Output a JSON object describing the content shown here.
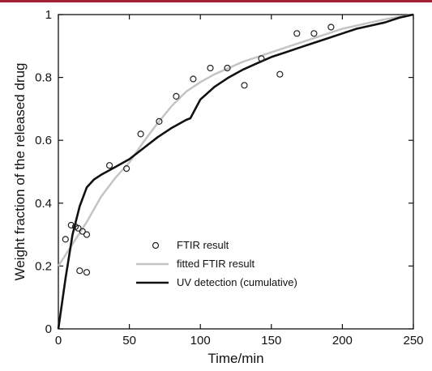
{
  "colors": {
    "top_rule": "#a32035",
    "fitted": "#c4c4c4",
    "uv": "#111111",
    "ftir": "#222222"
  },
  "chart_data": {
    "type": "scatter",
    "xlabel": "Time/min",
    "ylabel": "Weight fraction of the released drug",
    "xlim": [
      0,
      250
    ],
    "ylim": [
      0,
      1
    ],
    "xticks": [
      0,
      50,
      100,
      150,
      200,
      250
    ],
    "yticks": [
      0,
      0.2,
      0.4,
      0.6,
      0.8,
      1
    ],
    "xtick_labels": [
      "0",
      "50",
      "100",
      "150",
      "200",
      "250"
    ],
    "ytick_labels": [
      "0",
      "0.2",
      "0.4",
      "0.6",
      "0.8",
      "1"
    ],
    "legend_position": "lower-center",
    "series": [
      {
        "name": "FTIR result",
        "kind": "markers",
        "x": [
          5,
          9,
          12,
          14,
          17,
          20,
          15,
          20,
          36,
          48,
          58,
          71,
          83,
          95,
          107,
          119,
          131,
          143,
          156,
          168,
          180,
          192
        ],
        "y": [
          0.285,
          0.33,
          0.325,
          0.32,
          0.31,
          0.3,
          0.185,
          0.18,
          0.52,
          0.51,
          0.62,
          0.66,
          0.74,
          0.795,
          0.83,
          0.83,
          0.775,
          0.86,
          0.81,
          0.94,
          0.94,
          0.96
        ]
      },
      {
        "name": "fitted FTIR result",
        "kind": "line",
        "x": [
          0,
          10,
          20,
          30,
          40,
          50,
          60,
          70,
          80,
          90,
          100,
          110,
          120,
          130,
          140,
          150,
          160,
          170,
          180,
          190,
          200,
          210,
          220,
          230,
          240,
          250
        ],
        "y": [
          0.2,
          0.27,
          0.34,
          0.42,
          0.48,
          0.53,
          0.595,
          0.655,
          0.71,
          0.755,
          0.785,
          0.81,
          0.83,
          0.85,
          0.865,
          0.88,
          0.895,
          0.91,
          0.925,
          0.94,
          0.955,
          0.965,
          0.975,
          0.985,
          0.993,
          1.0
        ]
      },
      {
        "name": "UV detection (cumulative)",
        "kind": "line",
        "x": [
          0,
          5,
          10,
          15,
          20,
          25,
          30,
          40,
          50,
          60,
          70,
          80,
          90,
          93,
          100,
          110,
          120,
          130,
          140,
          150,
          160,
          170,
          180,
          190,
          200,
          210,
          220,
          230,
          240,
          250
        ],
        "y": [
          0,
          0.16,
          0.3,
          0.39,
          0.45,
          0.475,
          0.49,
          0.515,
          0.54,
          0.575,
          0.61,
          0.64,
          0.665,
          0.67,
          0.73,
          0.77,
          0.8,
          0.825,
          0.845,
          0.865,
          0.88,
          0.895,
          0.91,
          0.925,
          0.94,
          0.955,
          0.965,
          0.975,
          0.99,
          1.0
        ]
      }
    ]
  }
}
